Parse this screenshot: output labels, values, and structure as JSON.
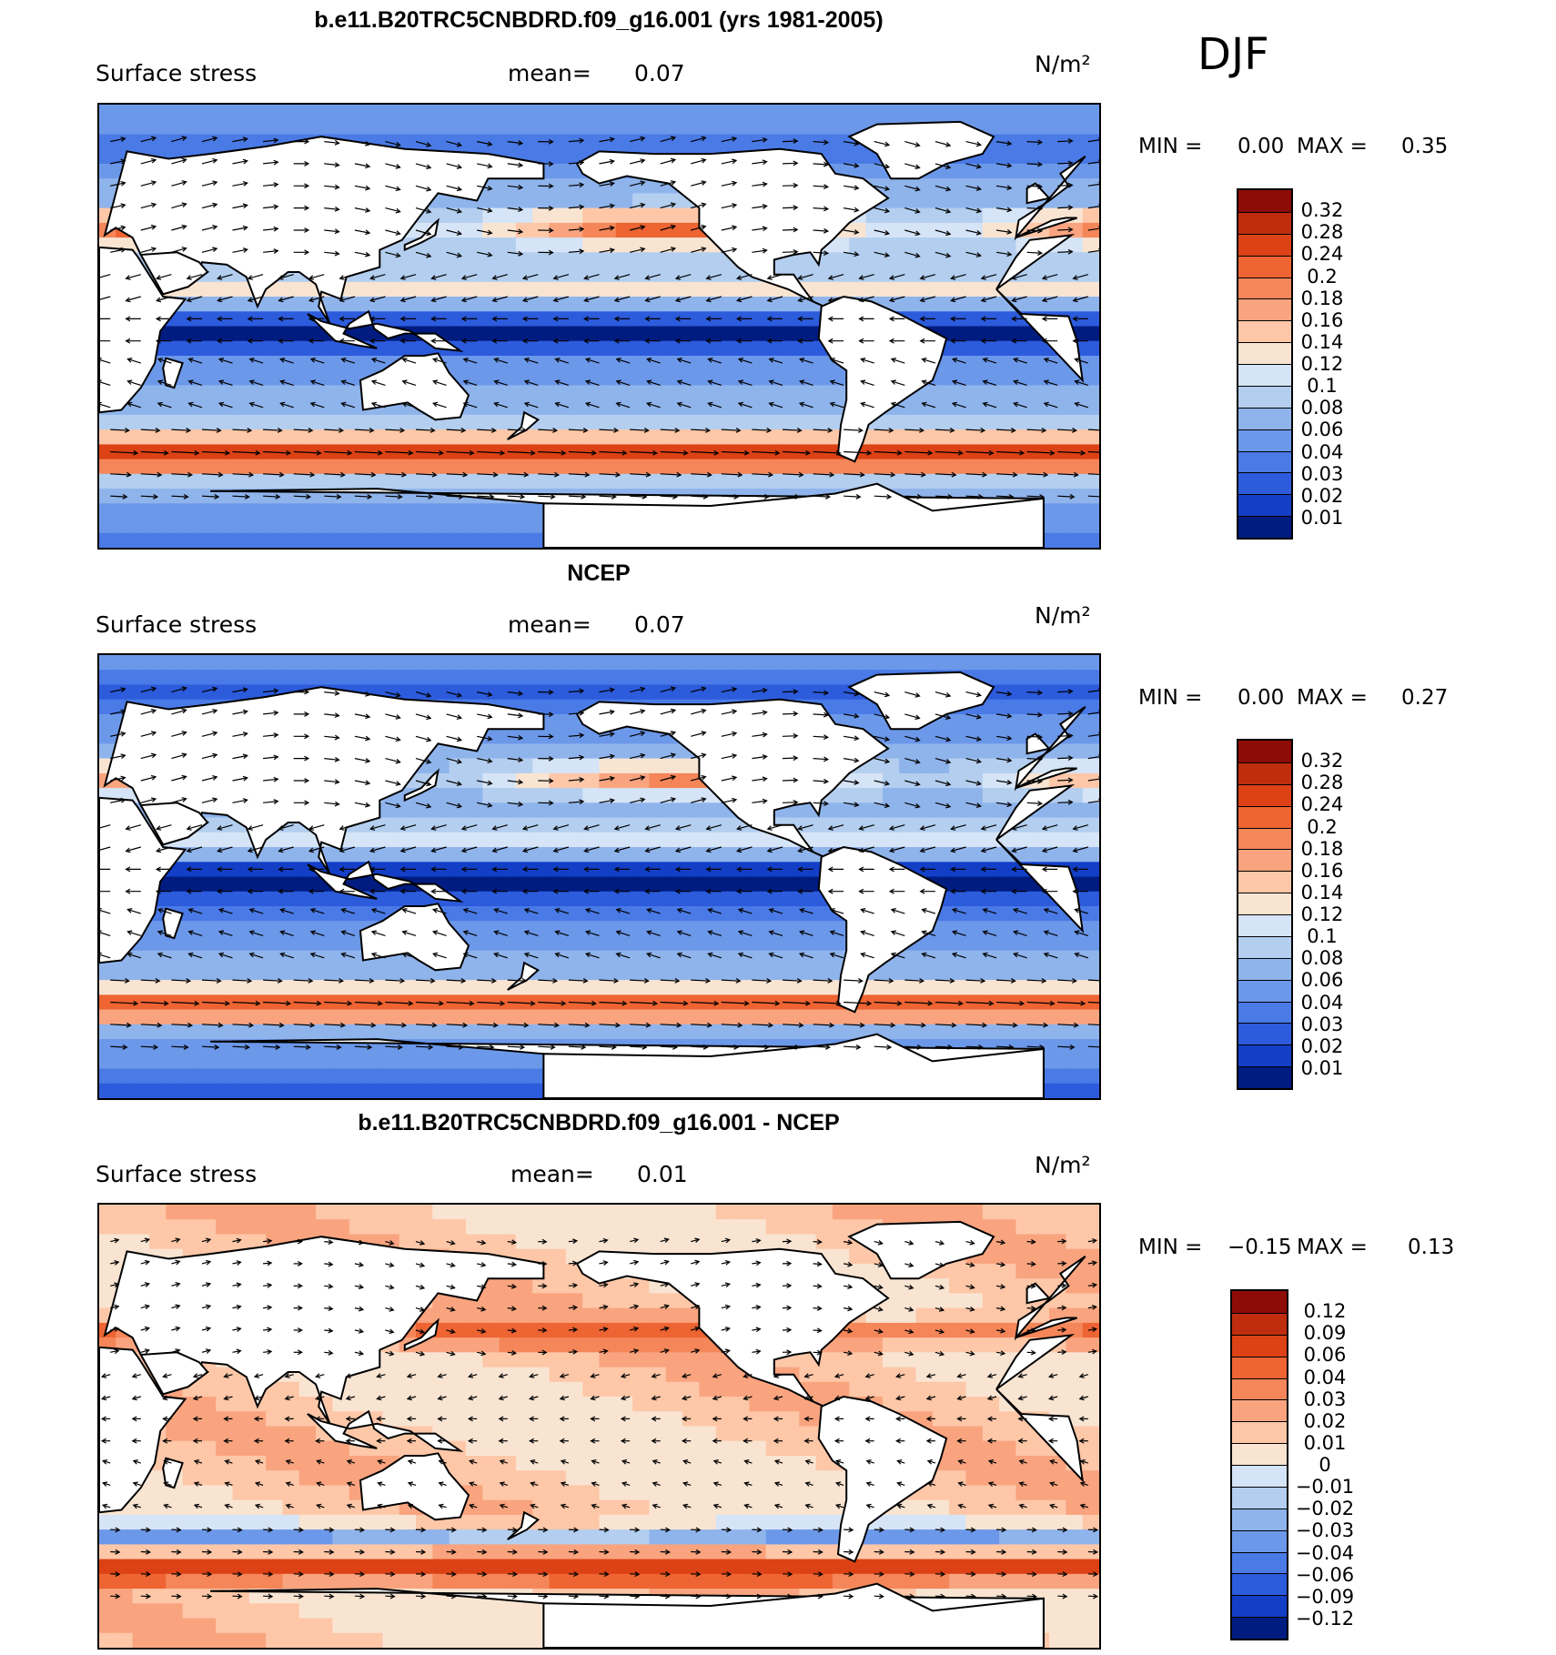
{
  "season": "DJF",
  "colors": {
    "positive": [
      "#f9e4d2",
      "#fdc7a8",
      "#f9a47f",
      "#f58659",
      "#ee6432",
      "#dc4215",
      "#bf2d0e",
      "#8e0c06"
    ],
    "negative": [
      "#d5e4f6",
      "#b3ceef",
      "#8fb4ec",
      "#6c98ea",
      "#4a7ae6",
      "#2c5bdc",
      "#133fc7",
      "#002aa8",
      "#001c80"
    ],
    "land": "#ffffff",
    "coast": "#000000"
  },
  "panels": [
    {
      "title": "b.e11.B20TRC5CNBDRD.f09_g16.001 (yrs 1981-2005)",
      "variable": "Surface stress",
      "mean_label": "mean=",
      "mean_value": "0.07",
      "units": "N/m²",
      "min_label": "MIN =",
      "min_value": "0.00",
      "max_label": "MAX =",
      "max_value": "0.35",
      "colorbar_ticks": [
        "0.32",
        "0.28",
        "0.24",
        "0.2",
        "0.18",
        "0.16",
        "0.14",
        "0.12",
        "0.1",
        "0.08",
        "0.06",
        "0.04",
        "0.03",
        "0.02",
        "0.01"
      ],
      "colorbar_colors": [
        "#8e0c06",
        "#bf2d0e",
        "#dc4215",
        "#ee6432",
        "#f58659",
        "#f9a47f",
        "#fdc7a8",
        "#f9e4d2",
        "#d5e4f6",
        "#b3ceef",
        "#8fb4ec",
        "#6c98ea",
        "#4a7ae6",
        "#2c5bdc",
        "#133fc7",
        "#001c80"
      ]
    },
    {
      "title": "NCEP",
      "variable": "Surface stress",
      "mean_label": "mean=",
      "mean_value": "0.07",
      "units": "N/m²",
      "min_label": "MIN =",
      "min_value": "0.00",
      "max_label": "MAX =",
      "max_value": "0.27",
      "colorbar_ticks": [
        "0.32",
        "0.28",
        "0.24",
        "0.2",
        "0.18",
        "0.16",
        "0.14",
        "0.12",
        "0.1",
        "0.08",
        "0.06",
        "0.04",
        "0.03",
        "0.02",
        "0.01"
      ],
      "colorbar_colors": [
        "#8e0c06",
        "#bf2d0e",
        "#dc4215",
        "#ee6432",
        "#f58659",
        "#f9a47f",
        "#fdc7a8",
        "#f9e4d2",
        "#d5e4f6",
        "#b3ceef",
        "#8fb4ec",
        "#6c98ea",
        "#4a7ae6",
        "#2c5bdc",
        "#133fc7",
        "#001c80"
      ]
    },
    {
      "title": "b.e11.B20TRC5CNBDRD.f09_g16.001 - NCEP",
      "variable": "Surface stress",
      "mean_label": "mean=",
      "mean_value": "0.01",
      "units": "N/m²",
      "min_label": "MIN =",
      "min_value": "−0.15",
      "max_label": "MAX =",
      "max_value": "0.13",
      "colorbar_ticks": [
        "0.12",
        "0.09",
        "0.06",
        "0.04",
        "0.03",
        "0.02",
        "0.01",
        "0",
        "−0.01",
        "−0.02",
        "−0.03",
        "−0.04",
        "−0.06",
        "−0.09",
        "−0.12"
      ],
      "colorbar_colors": [
        "#8e0c06",
        "#bf2d0e",
        "#dc4215",
        "#ee6432",
        "#f58659",
        "#f9a47f",
        "#fdc7a8",
        "#f9e4d2",
        "#d5e4f6",
        "#b3ceef",
        "#8fb4ec",
        "#6c98ea",
        "#4a7ae6",
        "#2c5bdc",
        "#133fc7",
        "#001c80"
      ]
    }
  ]
}
